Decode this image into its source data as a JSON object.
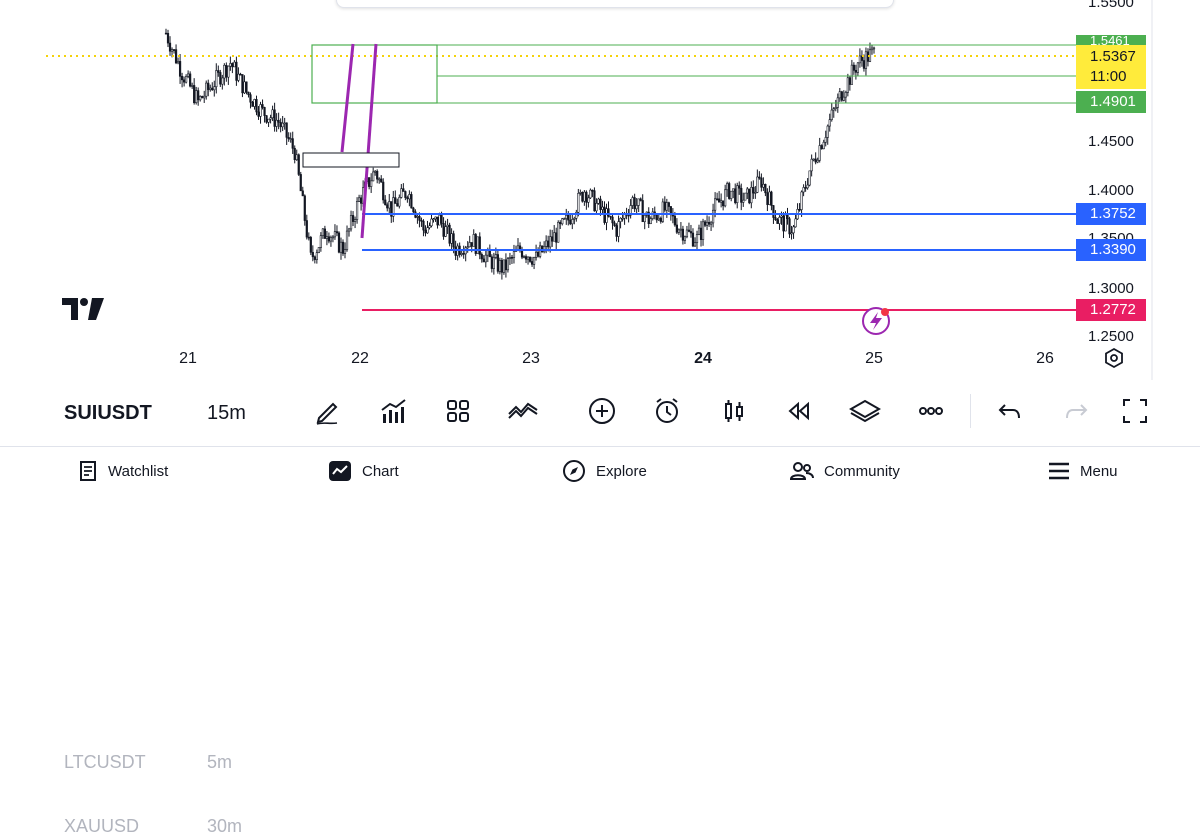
{
  "symbol_list": {
    "items": [
      {
        "symbol": "LTCUSDT",
        "timeframe": "5m"
      },
      {
        "symbol": "SUIUSDT",
        "timeframe": "15m"
      },
      {
        "symbol": "XAUUSD",
        "timeframe": "30m"
      }
    ],
    "selected_index": 1
  },
  "price_axis": {
    "ticks": [
      "1.5500",
      "1.4500",
      "1.4000",
      "1.3500",
      "1.3000",
      "1.2500"
    ]
  },
  "price_tags": {
    "current_price": "1.5367",
    "countdown": "11:00",
    "upper_zone": "1.5461",
    "zone_low": "1.4901",
    "support_1": "1.3752",
    "support_2": "1.3390",
    "alert_line": "1.2772"
  },
  "date_axis": {
    "ticks": [
      "21",
      "22",
      "23",
      "24",
      "25",
      "26"
    ],
    "bold_tick": "24"
  },
  "colors": {
    "green_zone": "#4caf50",
    "blue_line": "#2962ff",
    "red_line": "#e91e63",
    "purple_drawing": "#9c27b0",
    "price_line": "#f5d20a",
    "current_tag": "#ffeb3b",
    "candles": "#131722"
  },
  "toolbar": {
    "icons": [
      "brush-icon",
      "indicators-icon",
      "templates-icon",
      "compare-icon",
      "add-icon",
      "alert-clock-icon",
      "bar-replay-icon",
      "rewind-icon",
      "layers-icon",
      "more-icon",
      "undo-icon",
      "redo-icon",
      "fullscreen-icon"
    ]
  },
  "bottom_nav": {
    "watchlist": "Watchlist",
    "chart": "Chart",
    "explore": "Explore",
    "community": "Community",
    "menu": "Menu"
  },
  "chart_data": {
    "type": "candlestick",
    "symbol": "SUIUSDT",
    "interval": "15m",
    "x_ticks": [
      "21",
      "22",
      "23",
      "24",
      "25",
      "26"
    ],
    "y_ticks": [
      1.25,
      1.3,
      1.35,
      1.4,
      1.45,
      1.55
    ],
    "ylim": [
      1.23,
      1.58
    ],
    "series": [
      {
        "name": "close",
        "values": [
          1.56,
          1.52,
          1.49,
          1.51,
          1.53,
          1.5,
          1.48,
          1.47,
          1.44,
          1.33,
          1.36,
          1.34,
          1.39,
          1.42,
          1.38,
          1.4,
          1.36,
          1.37,
          1.34,
          1.35,
          1.33,
          1.32,
          1.34,
          1.33,
          1.35,
          1.37,
          1.4,
          1.38,
          1.36,
          1.39,
          1.37,
          1.38,
          1.36,
          1.35,
          1.38,
          1.4,
          1.39,
          1.41,
          1.37,
          1.36,
          1.42,
          1.46,
          1.5,
          1.53,
          1.54
        ]
      }
    ],
    "levels": [
      1.5461,
      1.5367,
      1.4901,
      1.3752,
      1.339,
      1.2772
    ]
  }
}
